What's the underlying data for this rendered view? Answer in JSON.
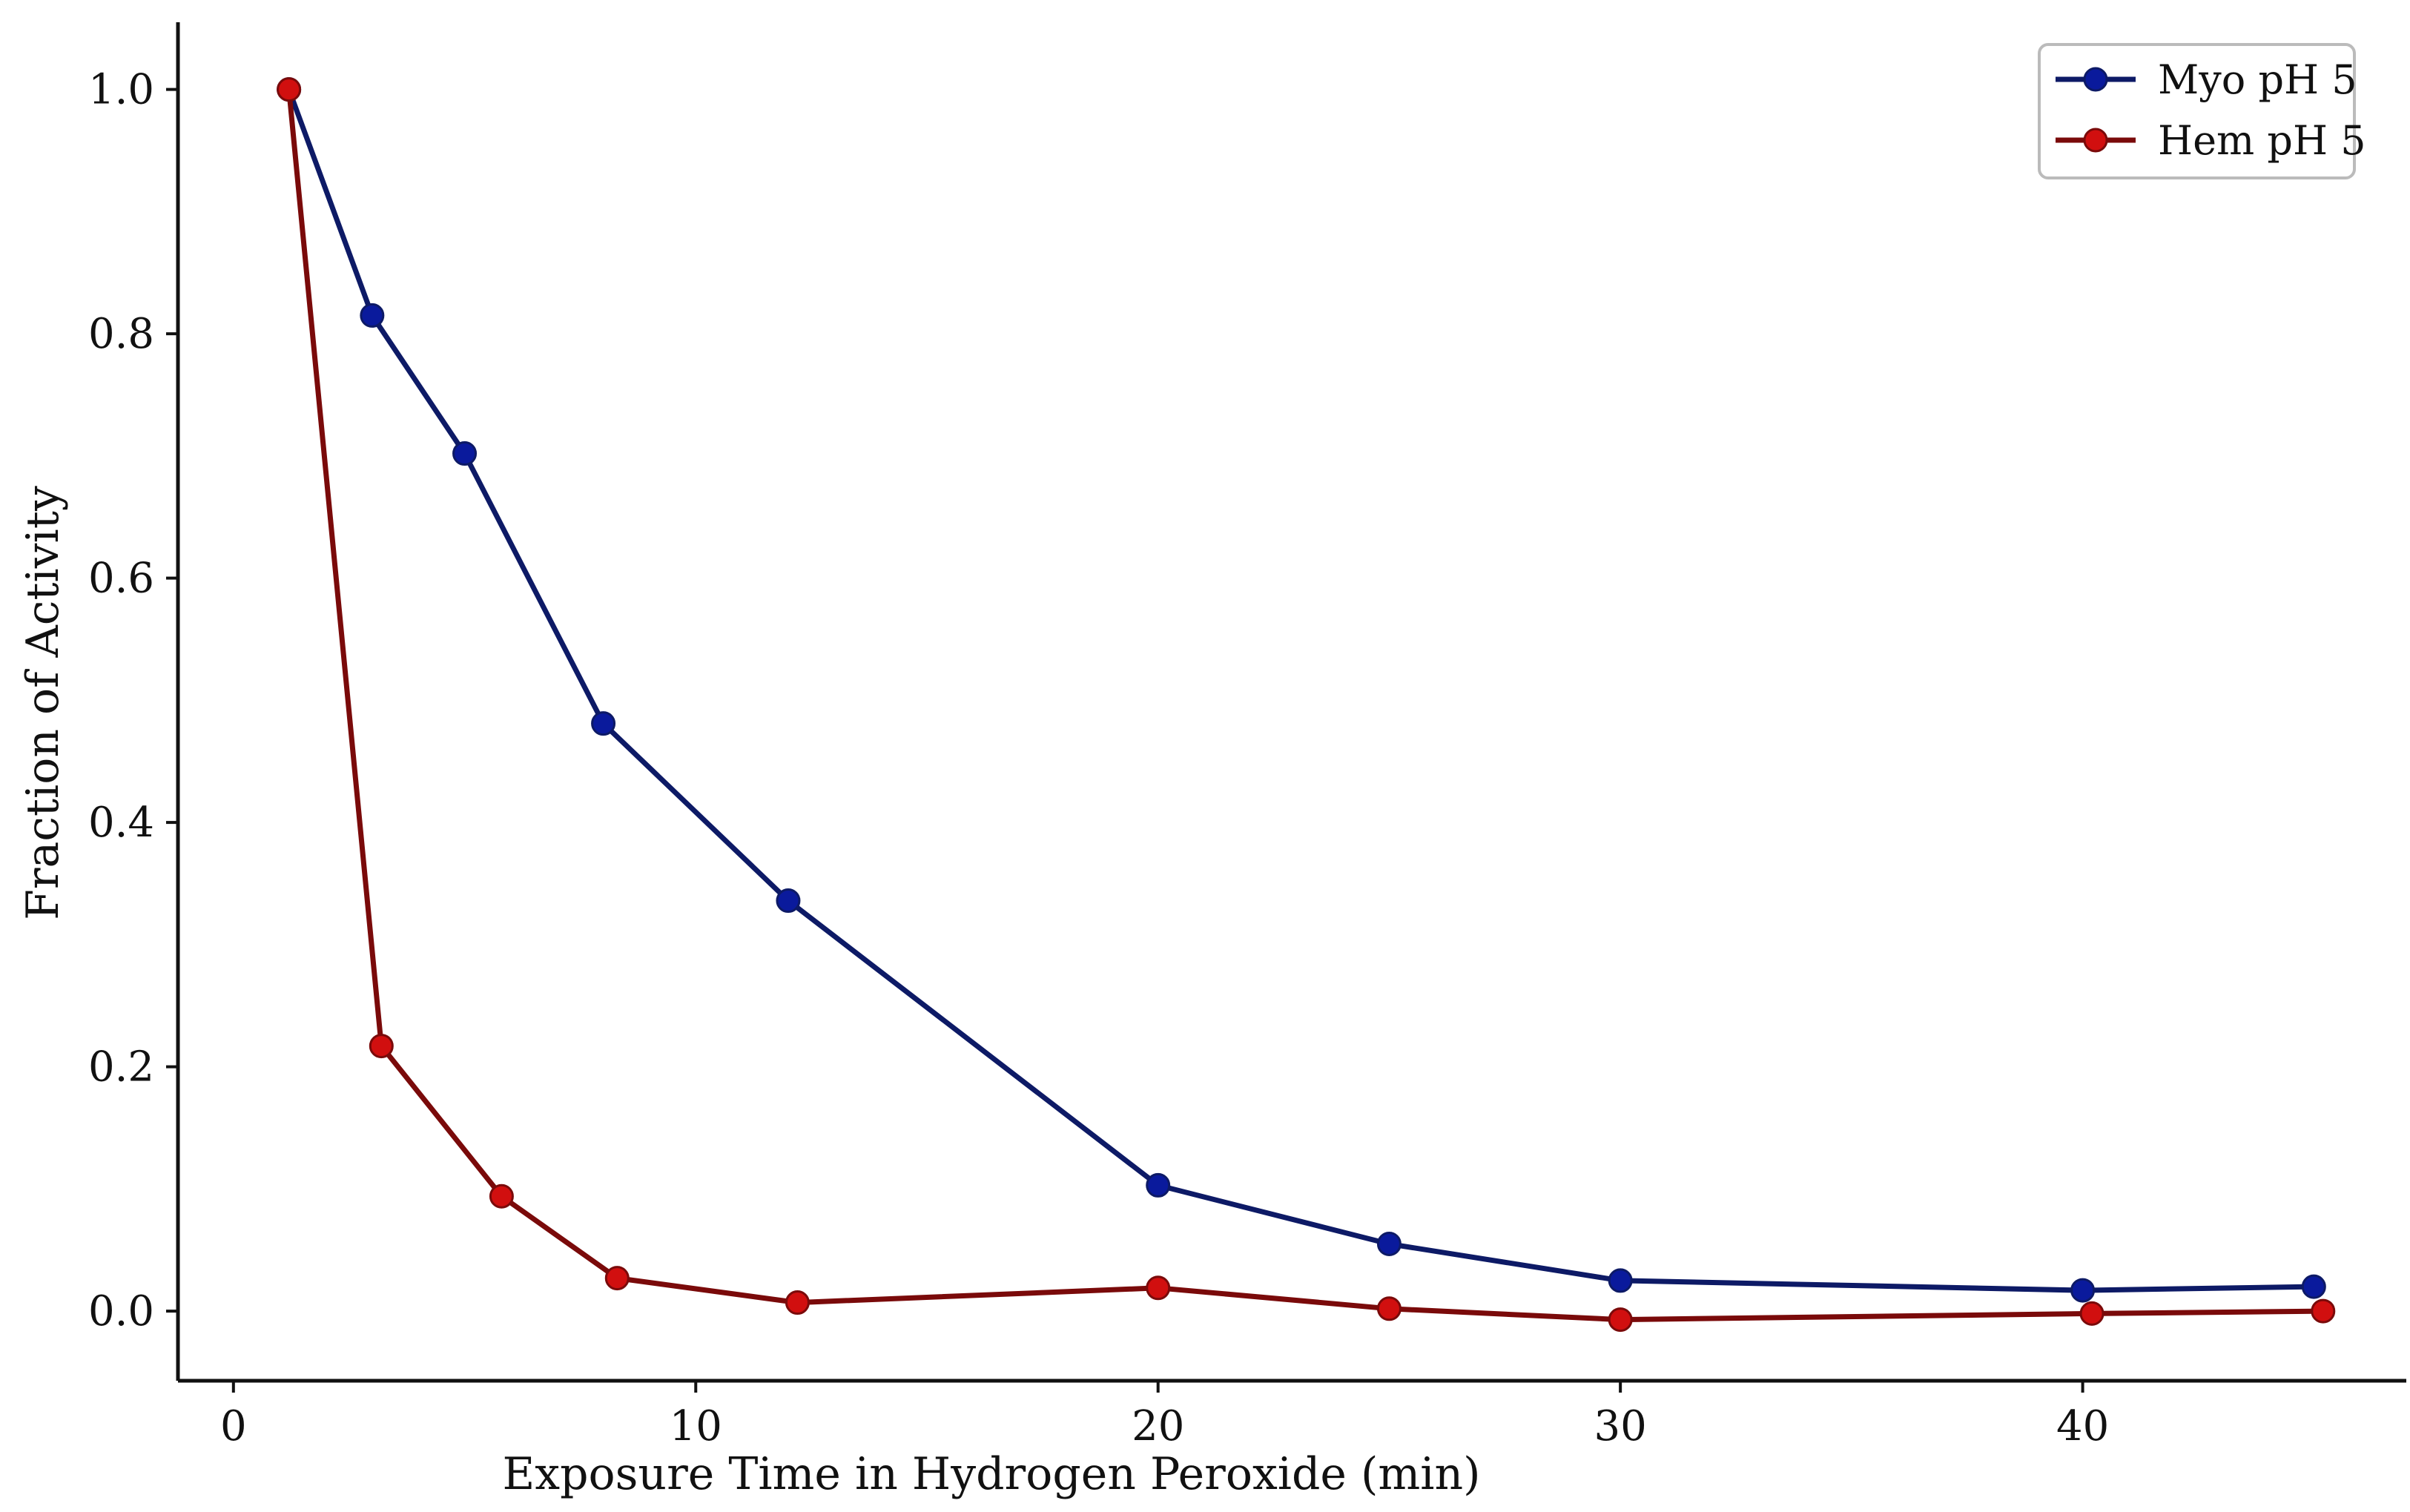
{
  "chart_data": {
    "type": "line",
    "title": "",
    "xlabel": "Exposure Time in Hydrogen Peroxide (min)",
    "ylabel": "Fraction of Activity",
    "xlim": [
      -1.2,
      47
    ],
    "ylim": [
      -0.057,
      1.055
    ],
    "xticks": [
      0,
      10,
      20,
      30,
      40
    ],
    "yticks": [
      0.0,
      0.2,
      0.4,
      0.6,
      0.8,
      1.0
    ],
    "xtick_labels": [
      "0",
      "10",
      "20",
      "30",
      "40"
    ],
    "ytick_labels": [
      "0.0",
      "0.2",
      "0.4",
      "0.6",
      "0.8",
      "1.0"
    ],
    "grid": false,
    "legend_position": "top-right",
    "series": [
      {
        "name": "Myo pH 5",
        "color": "#0d1a66",
        "marker_color": "#0a1a9c",
        "x": [
          1.2,
          3.0,
          5.0,
          8.0,
          12.0,
          20.0,
          25.0,
          30.0,
          40.0,
          45.0
        ],
        "y": [
          1.0,
          0.815,
          0.702,
          0.481,
          0.336,
          0.103,
          0.055,
          0.025,
          0.017,
          0.02
        ]
      },
      {
        "name": "Hem pH 5",
        "color": "#7a0a0a",
        "marker_color": "#d10f0f",
        "x": [
          1.2,
          3.2,
          5.8,
          8.3,
          12.2,
          20.0,
          25.0,
          30.0,
          40.2,
          45.2
        ],
        "y": [
          1.0,
          0.217,
          0.094,
          0.027,
          0.007,
          0.019,
          0.002,
          -0.007,
          -0.002,
          0.0
        ]
      }
    ]
  }
}
